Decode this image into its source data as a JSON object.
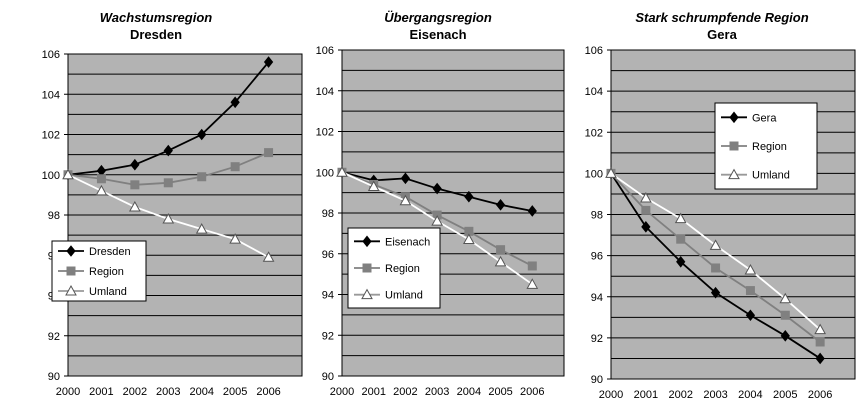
{
  "chart_data": [
    {
      "type": "line",
      "title": "Wachstumsregion",
      "subtitle": "Dresden",
      "x": [
        "2000",
        "2001",
        "2002",
        "2003",
        "2004",
        "2005",
        "2006"
      ],
      "ylim": [
        90,
        106
      ],
      "yticks": [
        90,
        92,
        94,
        96,
        98,
        100,
        102,
        104,
        106
      ],
      "grid": true,
      "legend_position": "bottom-left",
      "series": [
        {
          "name": "Dresden",
          "marker": "diamond",
          "color": "#000000",
          "values": [
            100,
            100.2,
            100.5,
            101.2,
            102.0,
            103.6,
            105.6
          ]
        },
        {
          "name": "Region",
          "marker": "square",
          "color": "#808080",
          "values": [
            100,
            99.8,
            99.5,
            99.6,
            99.9,
            100.4,
            101.1
          ]
        },
        {
          "name": "Umland",
          "marker": "triangle",
          "color": "#ffffff",
          "values": [
            100,
            99.2,
            98.4,
            97.8,
            97.3,
            96.8,
            95.9
          ]
        }
      ]
    },
    {
      "type": "line",
      "title": "Übergangsregion",
      "subtitle": "Eisenach",
      "x": [
        "2000",
        "2001",
        "2002",
        "2003",
        "2004",
        "2005",
        "2006"
      ],
      "ylim": [
        90,
        106
      ],
      "yticks": [
        90,
        92,
        94,
        96,
        98,
        100,
        102,
        104,
        106
      ],
      "grid": true,
      "legend_position": "bottom-left",
      "series": [
        {
          "name": "Eisenach",
          "marker": "diamond",
          "color": "#000000",
          "values": [
            100,
            99.6,
            99.7,
            99.2,
            98.8,
            98.4,
            98.1
          ]
        },
        {
          "name": "Region",
          "marker": "square",
          "color": "#808080",
          "values": [
            100,
            99.4,
            98.8,
            97.9,
            97.1,
            96.2,
            95.4
          ]
        },
        {
          "name": "Umland",
          "marker": "triangle",
          "color": "#ffffff",
          "values": [
            100,
            99.3,
            98.6,
            97.6,
            96.7,
            95.6,
            94.5
          ]
        }
      ]
    },
    {
      "type": "line",
      "title": "Stark schrumpfende Region",
      "subtitle": "Gera",
      "x": [
        "2000",
        "2001",
        "2002",
        "2003",
        "2004",
        "2005",
        "2006"
      ],
      "ylim": [
        90,
        106
      ],
      "yticks": [
        90,
        92,
        94,
        96,
        98,
        100,
        102,
        104,
        106
      ],
      "grid": true,
      "legend_position": "center",
      "series": [
        {
          "name": "Gera",
          "marker": "diamond",
          "color": "#000000",
          "values": [
            100,
            97.4,
            95.7,
            94.2,
            93.1,
            92.1,
            91.0
          ]
        },
        {
          "name": "Region",
          "marker": "square",
          "color": "#808080",
          "values": [
            100,
            98.2,
            96.8,
            95.4,
            94.3,
            93.1,
            91.8
          ]
        },
        {
          "name": "Umland",
          "marker": "triangle",
          "color": "#ffffff",
          "values": [
            100,
            98.8,
            97.8,
            96.5,
            95.3,
            93.9,
            92.4
          ]
        }
      ]
    }
  ],
  "colors": {
    "plot_background": "#b3b3b3",
    "gridline": "#000000"
  }
}
